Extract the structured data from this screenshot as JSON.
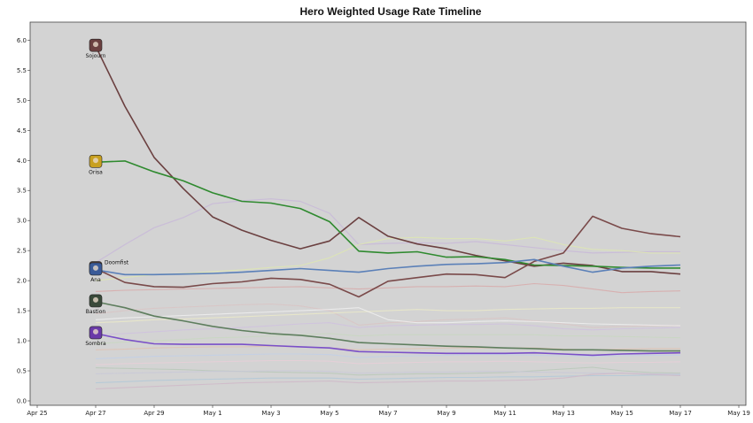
{
  "chart_data": {
    "type": "line",
    "title": "Hero Weighted Usage Rate Timeline",
    "xlabel": "",
    "ylabel": "",
    "grid": false,
    "background": "#d3d3d3",
    "xlim": [
      "2025-04-25",
      "2025-05-19"
    ],
    "ylim": [
      0,
      6.3
    ],
    "x_ticks": [
      {
        "date": "2025-04-25",
        "label": "Apr 25"
      },
      {
        "date": "2025-04-27",
        "label": "Apr 27"
      },
      {
        "date": "2025-04-29",
        "label": "Apr 29"
      },
      {
        "date": "2025-05-01",
        "label": "May 1"
      },
      {
        "date": "2025-05-03",
        "label": "May 3"
      },
      {
        "date": "2025-05-05",
        "label": "May 5"
      },
      {
        "date": "2025-05-07",
        "label": "May 7"
      },
      {
        "date": "2025-05-09",
        "label": "May 9"
      },
      {
        "date": "2025-05-11",
        "label": "May 11"
      },
      {
        "date": "2025-05-13",
        "label": "May 13"
      },
      {
        "date": "2025-05-15",
        "label": "May 15"
      },
      {
        "date": "2025-05-17",
        "label": "May 17"
      },
      {
        "date": "2025-05-19",
        "label": "May 19"
      }
    ],
    "y_ticks": [
      0.0,
      0.5,
      1.0,
      1.5,
      2.0,
      2.5,
      3.0,
      3.5,
      4.0,
      4.5,
      5.0,
      5.5,
      6.0
    ],
    "y_tick_labels": [
      "0.0",
      "0.5",
      "1.0",
      "1.5",
      "2.0",
      "2.5",
      "3.0",
      "3.5",
      "4.0",
      "4.5",
      "5.0",
      "5.5",
      "6.0"
    ],
    "x": [
      "2025-04-27",
      "2025-04-28",
      "2025-04-29",
      "2025-04-30",
      "2025-05-01",
      "2025-05-02",
      "2025-05-03",
      "2025-05-04",
      "2025-05-05",
      "2025-05-06",
      "2025-05-07",
      "2025-05-08",
      "2025-05-09",
      "2025-05-10",
      "2025-05-11",
      "2025-05-12",
      "2025-05-13",
      "2025-05-14",
      "2025-05-15",
      "2025-05-16",
      "2025-05-17"
    ],
    "series": [
      {
        "name": "Sojourn",
        "color": "#6b4040",
        "opacity": 1,
        "width": 1.6,
        "values": [
          5.9,
          4.9,
          4.05,
          3.53,
          3.06,
          2.84,
          2.67,
          2.53,
          2.66,
          3.05,
          2.74,
          2.61,
          2.53,
          2.42,
          2.33,
          2.24,
          2.29,
          2.25,
          2.15,
          2.15,
          2.11
        ]
      },
      {
        "name": "Orisa",
        "color": "#2f8a2f",
        "opacity": 1,
        "width": 1.6,
        "values": [
          3.97,
          3.99,
          3.81,
          3.66,
          3.46,
          3.32,
          3.29,
          3.2,
          2.98,
          2.49,
          2.46,
          2.48,
          2.39,
          2.4,
          2.35,
          2.26,
          2.25,
          2.24,
          2.22,
          2.21,
          2.21
        ]
      },
      {
        "name": "Doomfist",
        "color": "#7a4a4a",
        "opacity": 1,
        "width": 1.6,
        "values": [
          2.2,
          1.97,
          1.9,
          1.89,
          1.95,
          1.98,
          2.04,
          2.02,
          1.94,
          1.73,
          1.99,
          2.05,
          2.11,
          2.1,
          2.05,
          2.32,
          2.46,
          3.07,
          2.87,
          2.78,
          2.73
        ]
      },
      {
        "name": "Ana",
        "color": "#5b80b8",
        "opacity": 1,
        "width": 1.6,
        "values": [
          2.18,
          2.1,
          2.1,
          2.11,
          2.12,
          2.14,
          2.17,
          2.2,
          2.17,
          2.14,
          2.2,
          2.24,
          2.27,
          2.28,
          2.3,
          2.35,
          2.24,
          2.14,
          2.21,
          2.24,
          2.26
        ]
      },
      {
        "name": "Bastion",
        "color": "#5e7e5e",
        "opacity": 1,
        "width": 1.6,
        "values": [
          1.65,
          1.55,
          1.41,
          1.33,
          1.24,
          1.17,
          1.12,
          1.09,
          1.04,
          0.97,
          0.95,
          0.93,
          0.91,
          0.9,
          0.88,
          0.87,
          0.85,
          0.85,
          0.84,
          0.83,
          0.83
        ]
      },
      {
        "name": "Sombra",
        "color": "#7a4fc8",
        "opacity": 1,
        "width": 1.6,
        "values": [
          1.12,
          1.02,
          0.95,
          0.94,
          0.94,
          0.94,
          0.92,
          0.9,
          0.88,
          0.82,
          0.81,
          0.8,
          0.79,
          0.79,
          0.79,
          0.8,
          0.78,
          0.76,
          0.78,
          0.79,
          0.8
        ]
      },
      {
        "color": "#c8b8d8",
        "opacity": 0.85,
        "width": 1.2,
        "values": [
          2.3,
          2.6,
          2.88,
          3.05,
          3.28,
          3.33,
          3.36,
          3.32,
          3.12,
          2.6,
          2.62,
          2.63,
          2.62,
          2.65,
          2.6,
          2.55,
          2.5,
          2.46,
          2.47,
          2.48,
          2.48
        ]
      },
      {
        "color": "#dfe8b0",
        "opacity": 0.8,
        "width": 1.1,
        "values": [
          2.0,
          2.05,
          2.1,
          2.12,
          2.15,
          2.18,
          2.22,
          2.25,
          2.38,
          2.6,
          2.7,
          2.72,
          2.7,
          2.7,
          2.66,
          2.72,
          2.6,
          2.52,
          2.5,
          2.46,
          2.46
        ]
      },
      {
        "color": "#d8a8a8",
        "opacity": 0.8,
        "width": 1.1,
        "values": [
          1.82,
          1.84,
          1.85,
          1.86,
          1.87,
          1.88,
          1.89,
          1.9,
          1.88,
          1.86,
          1.88,
          1.9,
          1.9,
          1.91,
          1.9,
          1.95,
          1.92,
          1.86,
          1.8,
          1.82,
          1.83
        ]
      },
      {
        "color": "#d9c4c4",
        "opacity": 0.8,
        "width": 1.1,
        "values": [
          1.45,
          1.5,
          1.54,
          1.56,
          1.58,
          1.6,
          1.61,
          1.58,
          1.5,
          1.26,
          1.3,
          1.32,
          1.35,
          1.36,
          1.38,
          1.33,
          1.28,
          1.22,
          1.24,
          1.25,
          1.25
        ]
      },
      {
        "color": "#ecebc8",
        "opacity": 0.8,
        "width": 1.1,
        "values": [
          1.3,
          1.32,
          1.35,
          1.36,
          1.38,
          1.4,
          1.42,
          1.44,
          1.46,
          1.48,
          1.5,
          1.52,
          1.5,
          1.5,
          1.52,
          1.53,
          1.54,
          1.54,
          1.55,
          1.55,
          1.55
        ]
      },
      {
        "color": "#ffffff",
        "opacity": 0.55,
        "width": 1.1,
        "values": [
          1.35,
          1.38,
          1.4,
          1.42,
          1.44,
          1.46,
          1.48,
          1.5,
          1.52,
          1.55,
          1.35,
          1.3,
          1.3,
          1.32,
          1.33,
          1.32,
          1.3,
          1.28,
          1.27,
          1.26,
          1.25
        ]
      },
      {
        "color": "#d0c0e0",
        "opacity": 0.8,
        "width": 1.1,
        "values": [
          1.1,
          1.12,
          1.15,
          1.18,
          1.2,
          1.22,
          1.25,
          1.28,
          1.3,
          1.22,
          1.25,
          1.26,
          1.27,
          1.27,
          1.28,
          1.25,
          1.2,
          1.18,
          1.2,
          1.21,
          1.22
        ]
      },
      {
        "color": "#c8d8c0",
        "opacity": 0.8,
        "width": 1.1,
        "values": [
          0.95,
          0.98,
          1.0,
          1.02,
          1.05,
          1.06,
          1.08,
          1.1,
          1.12,
          1.08,
          1.1,
          1.1,
          1.1,
          1.1,
          1.1,
          1.1,
          1.08,
          1.08,
          1.07,
          1.06,
          1.05
        ]
      },
      {
        "color": "#e0c0b0",
        "opacity": 0.8,
        "width": 1.1,
        "values": [
          0.85,
          0.86,
          0.88,
          0.89,
          0.9,
          0.9,
          0.91,
          0.9,
          0.88,
          0.85,
          0.86,
          0.87,
          0.88,
          0.88,
          0.88,
          0.88,
          0.86,
          0.85,
          0.86,
          0.87,
          0.87
        ]
      },
      {
        "color": "#c0d0e8",
        "opacity": 0.8,
        "width": 1.1,
        "values": [
          0.7,
          0.72,
          0.74,
          0.75,
          0.76,
          0.77,
          0.78,
          0.78,
          0.77,
          0.72,
          0.74,
          0.75,
          0.76,
          0.77,
          0.77,
          0.76,
          0.75,
          0.74,
          0.75,
          0.76,
          0.76
        ]
      },
      {
        "color": "#e8d0d8",
        "opacity": 0.8,
        "width": 1.1,
        "values": [
          0.6,
          0.62,
          0.63,
          0.64,
          0.65,
          0.66,
          0.67,
          0.67,
          0.66,
          0.62,
          0.63,
          0.64,
          0.65,
          0.65,
          0.66,
          0.65,
          0.64,
          0.63,
          0.64,
          0.64,
          0.65
        ]
      },
      {
        "color": "#b8c8b8",
        "opacity": 0.8,
        "width": 1.1,
        "values": [
          0.55,
          0.54,
          0.53,
          0.52,
          0.5,
          0.49,
          0.48,
          0.47,
          0.46,
          0.43,
          0.44,
          0.45,
          0.45,
          0.46,
          0.47,
          0.5,
          0.53,
          0.56,
          0.5,
          0.47,
          0.46
        ]
      },
      {
        "color": "#c8c8d8",
        "opacity": 0.8,
        "width": 1.1,
        "values": [
          0.45,
          0.46,
          0.47,
          0.48,
          0.49,
          0.49,
          0.5,
          0.5,
          0.49,
          0.46,
          0.47,
          0.48,
          0.48,
          0.49,
          0.49,
          0.48,
          0.47,
          0.46,
          0.46,
          0.45,
          0.45
        ]
      },
      {
        "color": "#b0c8d8",
        "opacity": 0.8,
        "width": 1.1,
        "values": [
          0.3,
          0.32,
          0.34,
          0.35,
          0.36,
          0.37,
          0.38,
          0.38,
          0.38,
          0.36,
          0.37,
          0.38,
          0.39,
          0.39,
          0.4,
          0.4,
          0.41,
          0.42,
          0.42,
          0.43,
          0.43
        ]
      },
      {
        "color": "#d0b8c8",
        "opacity": 0.8,
        "width": 1.1,
        "values": [
          0.2,
          0.22,
          0.24,
          0.26,
          0.28,
          0.3,
          0.31,
          0.32,
          0.33,
          0.3,
          0.31,
          0.32,
          0.33,
          0.33,
          0.34,
          0.35,
          0.38,
          0.44,
          0.46,
          0.44,
          0.42
        ]
      }
    ],
    "hero_markers": [
      {
        "label": "Sojourn",
        "color": "#6b4040",
        "y": 5.9
      },
      {
        "label": "Orisa",
        "color": "#c8a020",
        "y": 3.97
      },
      {
        "label": "Doomfist",
        "color": "#5a4038",
        "y": 2.2
      },
      {
        "label": "Ana",
        "color": "#3a5a98",
        "y": 2.18
      },
      {
        "label": "Bastion",
        "color": "#3a4a3a",
        "y": 1.65
      },
      {
        "label": "Sombra",
        "color": "#6a3aa8",
        "y": 1.12
      }
    ]
  }
}
